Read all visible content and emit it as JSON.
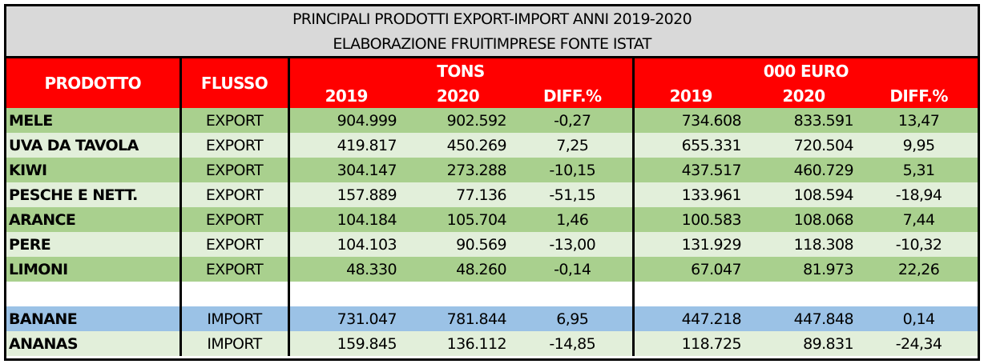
{
  "title": {
    "line1": "PRINCIPALI PRODOTTI EXPORT-IMPORT ANNI 2019-2020",
    "line2": "ELABORAZIONE FRUITIMPRESE FONTE ISTAT"
  },
  "header": {
    "prodotto": "PRODOTTO",
    "flusso": "FLUSSO",
    "tons": "TONS",
    "euro": "000 EURO",
    "y2019": "2019",
    "y2020": "2020",
    "diff": "DIFF.%"
  },
  "colors": {
    "red": "#ff0000",
    "green": "#a9d08e",
    "light_green": "#e2efda",
    "blue": "#9bc2e6",
    "grey": "#d9d9d9"
  },
  "rows": [
    {
      "prodotto": "MELE",
      "flusso": "EXPORT",
      "t2019": "904.999",
      "t2020": "902.592",
      "tdiff": "-0,27",
      "e2019": "734.608",
      "e2020": "833.591",
      "ediff": "13,47"
    },
    {
      "prodotto": "UVA DA TAVOLA",
      "flusso": "EXPORT",
      "t2019": "419.817",
      "t2020": "450.269",
      "tdiff": "7,25",
      "e2019": "655.331",
      "e2020": "720.504",
      "ediff": "9,95"
    },
    {
      "prodotto": "KIWI",
      "flusso": "EXPORT",
      "t2019": "304.147",
      "t2020": "273.288",
      "tdiff": "-10,15",
      "e2019": "437.517",
      "e2020": "460.729",
      "ediff": "5,31"
    },
    {
      "prodotto": "PESCHE E NETT.",
      "flusso": "EXPORT",
      "t2019": "157.889",
      "t2020": "77.136",
      "tdiff": "-51,15",
      "e2019": "133.961",
      "e2020": "108.594",
      "ediff": "-18,94"
    },
    {
      "prodotto": "ARANCE",
      "flusso": "EXPORT",
      "t2019": "104.184",
      "t2020": "105.704",
      "tdiff": "1,46",
      "e2019": "100.583",
      "e2020": "108.068",
      "ediff": "7,44"
    },
    {
      "prodotto": "PERE",
      "flusso": "EXPORT",
      "t2019": "104.103",
      "t2020": "90.569",
      "tdiff": "-13,00",
      "e2019": "131.929",
      "e2020": "118.308",
      "ediff": "-10,32"
    },
    {
      "prodotto": "LIMONI",
      "flusso": "EXPORT",
      "t2019": "48.330",
      "t2020": "48.260",
      "tdiff": "-0,14",
      "e2019": "67.047",
      "e2020": "81.973",
      "ediff": "22,26"
    },
    {
      "prodotto": "BANANE",
      "flusso": "IMPORT",
      "t2019": "731.047",
      "t2020": "781.844",
      "tdiff": "6,95",
      "e2019": "447.218",
      "e2020": "447.848",
      "ediff": "0,14"
    },
    {
      "prodotto": "ANANAS",
      "flusso": "IMPORT",
      "t2019": "159.845",
      "t2020": "136.112",
      "tdiff": "-14,85",
      "e2019": "118.725",
      "e2020": "89.831",
      "ediff": "-24,34"
    }
  ]
}
